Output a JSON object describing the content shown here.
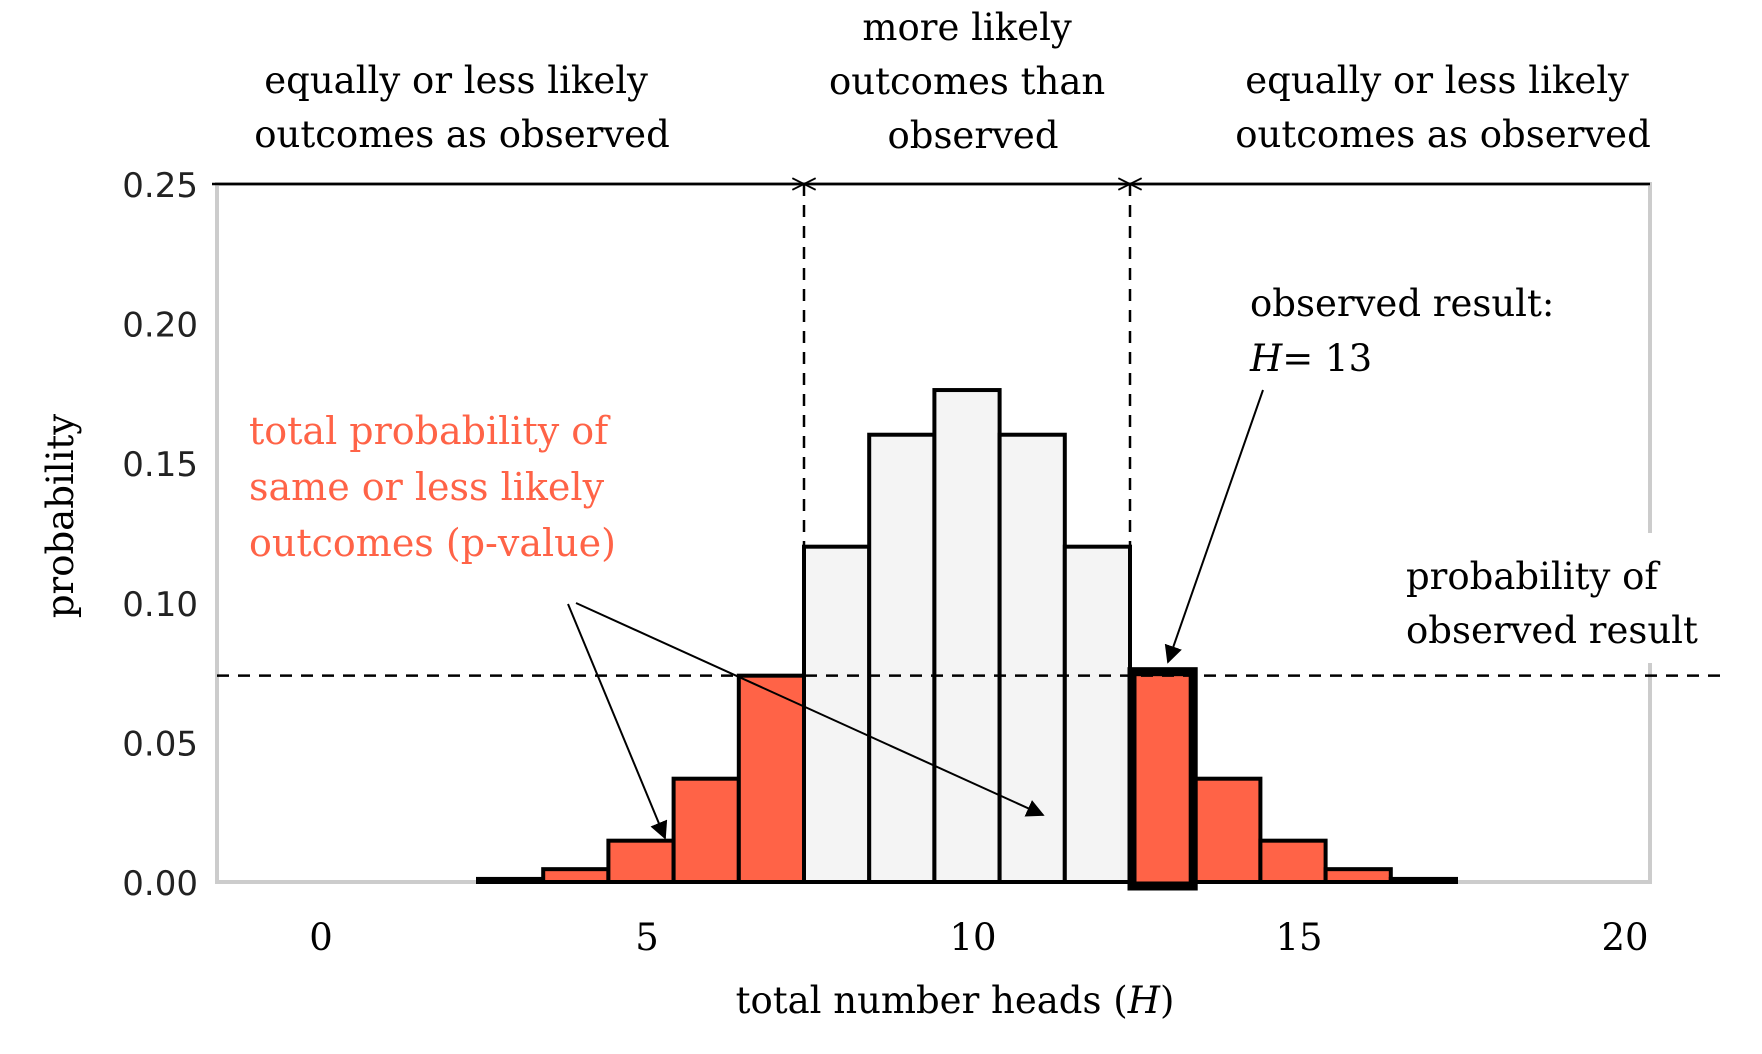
{
  "chart_data": {
    "type": "bar",
    "title": "",
    "xlabel_prefix": "total number heads (",
    "xlabel_var": "H",
    "xlabel_suffix": ")",
    "ylabel": "probability",
    "xlim": [
      -1.5,
      21.2
    ],
    "ylim": [
      0,
      0.25
    ],
    "x_ticks": [
      0,
      5,
      10,
      15,
      20
    ],
    "x_tick_labels": [
      "0",
      "5",
      "10",
      "15",
      "20"
    ],
    "y_ticks": [
      0,
      0.05,
      0.1,
      0.15,
      0.2,
      0.25
    ],
    "y_tick_labels": [
      "0.00",
      "0.05",
      "0.10",
      "0.15",
      "0.20",
      "0.25"
    ],
    "grid": false,
    "categories": [
      3,
      4,
      5,
      6,
      7,
      8,
      9,
      10,
      11,
      12,
      13,
      14,
      15,
      16,
      17
    ],
    "values": [
      0.0011,
      0.0046,
      0.0148,
      0.037,
      0.0739,
      0.1201,
      0.1602,
      0.1762,
      0.1602,
      0.1201,
      0.0739,
      0.037,
      0.0148,
      0.0046,
      0.0011
    ],
    "groups": [
      "less",
      "less",
      "less",
      "less",
      "less",
      "more",
      "more",
      "more",
      "more",
      "more",
      "less",
      "less",
      "less",
      "less",
      "less"
    ],
    "observed_value": 13,
    "observed_probability": 0.0739,
    "region_boundaries": [
      7.5,
      12.5
    ],
    "colors": {
      "less_likely": "#ff6347",
      "more_likely": "#f4f4f4",
      "bar_edge": "#000000",
      "frame": "#cccccc",
      "annotation_red": "#ff6347",
      "text": "#000000"
    },
    "annotations": {
      "region_left": [
        "equally or less likely",
        "outcomes as observed"
      ],
      "region_middle": [
        "more likely",
        "outcomes than",
        "observed"
      ],
      "region_right": [
        "equally or less likely",
        "outcomes as observed"
      ],
      "pvalue_label": [
        "total probability of",
        "same or less likely",
        "outcomes (p-value)"
      ],
      "observed_label_line1": "observed result:",
      "observed_label_var": "H",
      "observed_label_eq": "= 13",
      "observed_prob_label": [
        "probability of",
        "observed result"
      ]
    }
  }
}
